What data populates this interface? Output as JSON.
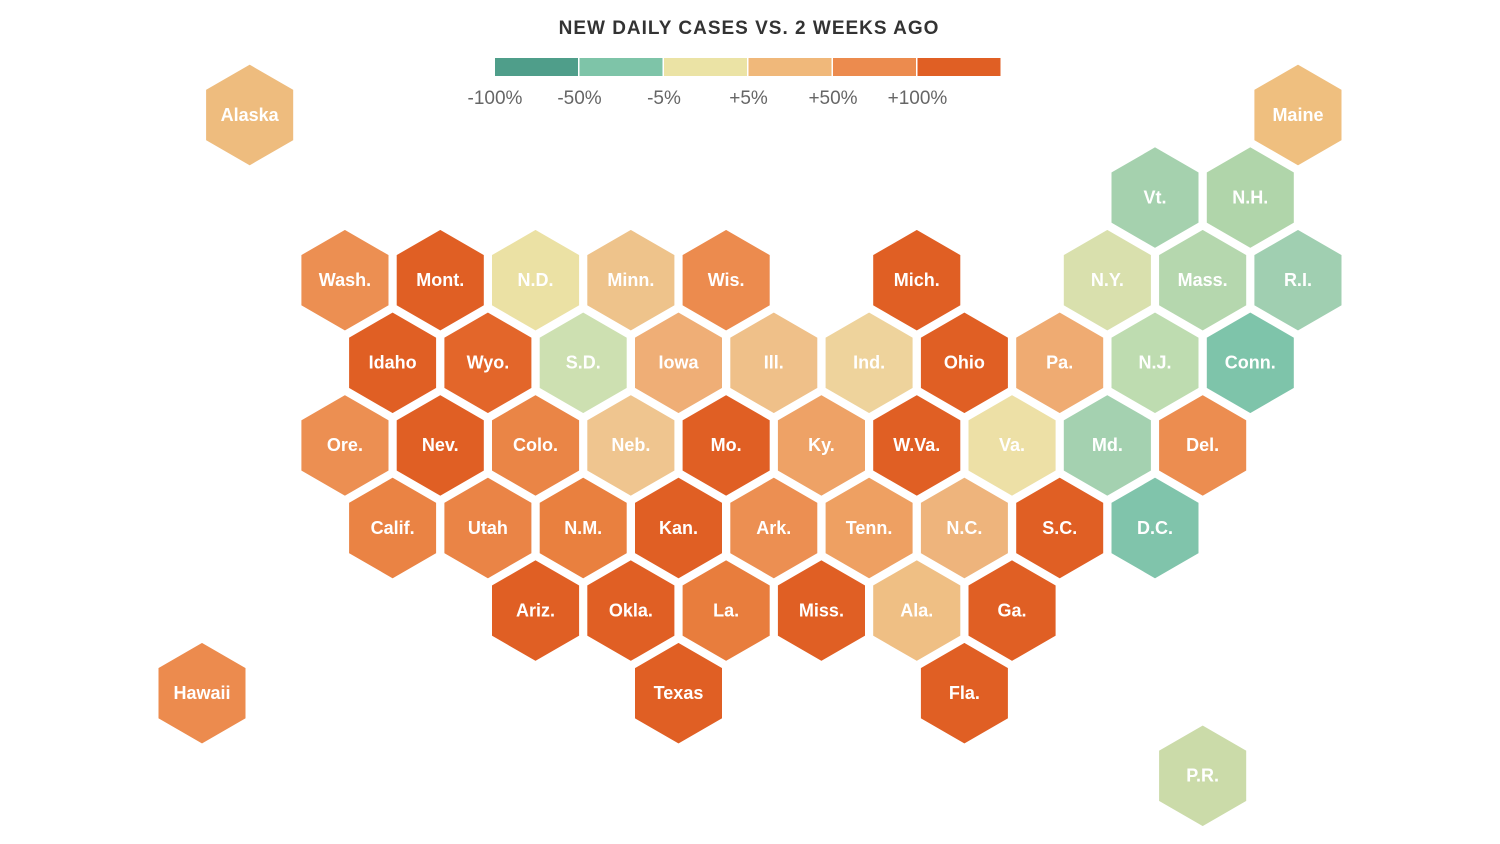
{
  "title": "NEW DAILY CASES VS. 2 WEEKS AGO",
  "legend": {
    "items": [
      {
        "label": "-100%",
        "color": "#4f9e8a"
      },
      {
        "label": "-50%",
        "color": "#7ec4a8"
      },
      {
        "label": "-5%",
        "color": "#ebe3a5"
      },
      {
        "label": "+5%",
        "color": "#f0b87a"
      },
      {
        "label": "+50%",
        "color": "#ec8b4e"
      },
      {
        "label": "+100%",
        "color": "#e05f24"
      }
    ]
  },
  "states": [
    {
      "label": "Alaska",
      "color": "#eebc7e"
    },
    {
      "label": "Maine",
      "color": "#efbf7f"
    },
    {
      "label": "Vt.",
      "color": "#a5d1ae"
    },
    {
      "label": "N.H.",
      "color": "#b0d5aa"
    },
    {
      "label": "Wash.",
      "color": "#ec8f52"
    },
    {
      "label": "Mont.",
      "color": "#e05f24"
    },
    {
      "label": "N.D.",
      "color": "#ebe1a4"
    },
    {
      "label": "Minn.",
      "color": "#eec38b"
    },
    {
      "label": "Wis.",
      "color": "#ec8b4e"
    },
    {
      "label": "Mich.",
      "color": "#e05f24"
    },
    {
      "label": "N.Y.",
      "color": "#d9e0ad"
    },
    {
      "label": "Mass.",
      "color": "#b5d7ae"
    },
    {
      "label": "R.I.",
      "color": "#a0cfb1"
    },
    {
      "label": "Idaho",
      "color": "#e05f24"
    },
    {
      "label": "Wyo.",
      "color": "#e3662a"
    },
    {
      "label": "S.D.",
      "color": "#cde0b1"
    },
    {
      "label": "Iowa",
      "color": "#efae76"
    },
    {
      "label": "Ill.",
      "color": "#efc089"
    },
    {
      "label": "Ind.",
      "color": "#eed39c"
    },
    {
      "label": "Ohio",
      "color": "#e05f24"
    },
    {
      "label": "Pa.",
      "color": "#efab72"
    },
    {
      "label": "N.J.",
      "color": "#bedcb0"
    },
    {
      "label": "Conn.",
      "color": "#7ec4aa"
    },
    {
      "label": "Ore.",
      "color": "#ec8f52"
    },
    {
      "label": "Nev.",
      "color": "#e05f24"
    },
    {
      "label": "Colo.",
      "color": "#ea8546"
    },
    {
      "label": "Neb.",
      "color": "#efc58f"
    },
    {
      "label": "Mo.",
      "color": "#e05f24"
    },
    {
      "label": "Ky.",
      "color": "#eea266"
    },
    {
      "label": "W.Va.",
      "color": "#e05f24"
    },
    {
      "label": "Va.",
      "color": "#ede0a6"
    },
    {
      "label": "Md.",
      "color": "#a4d1b0"
    },
    {
      "label": "Del.",
      "color": "#ec8d50"
    },
    {
      "label": "Calif.",
      "color": "#ea8344"
    },
    {
      "label": "Utah",
      "color": "#ea8446"
    },
    {
      "label": "N.M.",
      "color": "#e9803f"
    },
    {
      "label": "Kan.",
      "color": "#e05f24"
    },
    {
      "label": "Ark.",
      "color": "#ec8f52"
    },
    {
      "label": "Tenn.",
      "color": "#eea062"
    },
    {
      "label": "N.C.",
      "color": "#eeb47c"
    },
    {
      "label": "S.C.",
      "color": "#e05f24"
    },
    {
      "label": "D.C.",
      "color": "#80c4ab"
    },
    {
      "label": "Ariz.",
      "color": "#e05f24"
    },
    {
      "label": "Okla.",
      "color": "#e05f24"
    },
    {
      "label": "La.",
      "color": "#e87d3d"
    },
    {
      "label": "Miss.",
      "color": "#e05f24"
    },
    {
      "label": "Ala.",
      "color": "#efbf84"
    },
    {
      "label": "Ga.",
      "color": "#e05f24"
    },
    {
      "label": "Hawaii",
      "color": "#ec8b4e"
    },
    {
      "label": "Texas",
      "color": "#e05f24"
    },
    {
      "label": "Fla.",
      "color": "#e05f24"
    },
    {
      "label": "P.R.",
      "color": "#cbdba9"
    }
  ]
}
